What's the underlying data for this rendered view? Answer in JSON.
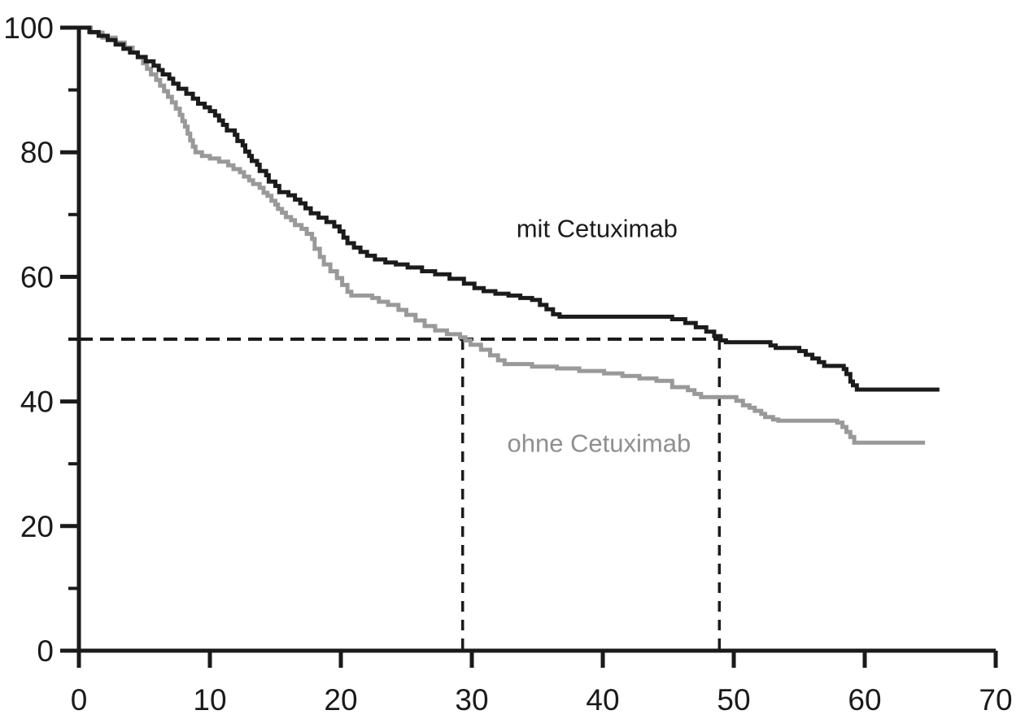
{
  "chart_data": {
    "type": "line",
    "subtype": "kaplan-meier-step",
    "title": "",
    "xlabel": "",
    "ylabel": "",
    "xlim": [
      0,
      70
    ],
    "ylim": [
      0,
      100
    ],
    "xticks": [
      0,
      10,
      20,
      30,
      40,
      50,
      60,
      70
    ],
    "yticks_major": [
      0,
      20,
      40,
      60,
      80,
      100
    ],
    "yticks_minor": [
      10,
      30,
      50,
      70,
      90
    ],
    "grid": false,
    "legend_position": "inline-labels",
    "axis_color": "#1a1a1a",
    "series": [
      {
        "name": "ohne Cetuximab",
        "color": "#999999",
        "stroke_width": 5,
        "points": [
          [
            0,
            100
          ],
          [
            0.9,
            99.2
          ],
          [
            1.8,
            98.4
          ],
          [
            2.8,
            97.6
          ],
          [
            3.5,
            96.8
          ],
          [
            4.1,
            96
          ],
          [
            4.5,
            95.2
          ],
          [
            4.9,
            94.3
          ],
          [
            5.2,
            93.4
          ],
          [
            5.5,
            92.5
          ],
          [
            5.9,
            91.6
          ],
          [
            6.2,
            90.7
          ],
          [
            6.5,
            89.8
          ],
          [
            6.8,
            88.9
          ],
          [
            7.1,
            88
          ],
          [
            7.4,
            87
          ],
          [
            7.7,
            86
          ],
          [
            7.9,
            85
          ],
          [
            8.1,
            84.1
          ],
          [
            8.3,
            83
          ],
          [
            8.5,
            81.9
          ],
          [
            8.7,
            80.9
          ],
          [
            8.9,
            80
          ],
          [
            9.4,
            79.4
          ],
          [
            10,
            79
          ],
          [
            10.7,
            78.5
          ],
          [
            11.4,
            77.9
          ],
          [
            11.8,
            77.3
          ],
          [
            12.3,
            76.8
          ],
          [
            12.6,
            76.1
          ],
          [
            13,
            75.5
          ],
          [
            13.3,
            74.9
          ],
          [
            13.8,
            74.3
          ],
          [
            14.1,
            73.5
          ],
          [
            14.4,
            73
          ],
          [
            14.7,
            72.2
          ],
          [
            15,
            71.6
          ],
          [
            15.2,
            70.9
          ],
          [
            15.5,
            70.3
          ],
          [
            15.8,
            69.6
          ],
          [
            16.2,
            69.1
          ],
          [
            16.5,
            68.3
          ],
          [
            17,
            67.7
          ],
          [
            17.4,
            66.9
          ],
          [
            17.8,
            66.1
          ],
          [
            18,
            64.5
          ],
          [
            18.4,
            63.2
          ],
          [
            18.7,
            62
          ],
          [
            19.2,
            60.9
          ],
          [
            19.7,
            59.8
          ],
          [
            20.1,
            58.7
          ],
          [
            20.5,
            57.6
          ],
          [
            20.8,
            57
          ],
          [
            22.4,
            56.6
          ],
          [
            22.9,
            56
          ],
          [
            23.6,
            55.5
          ],
          [
            24.4,
            54.7
          ],
          [
            25,
            53.9
          ],
          [
            25.7,
            53
          ],
          [
            26.4,
            52.1
          ],
          [
            27.2,
            51.4
          ],
          [
            28.1,
            50.8
          ],
          [
            29.1,
            50.3
          ],
          [
            29.5,
            49.8
          ],
          [
            29.9,
            49.1
          ],
          [
            30.7,
            48.3
          ],
          [
            31.4,
            47.4
          ],
          [
            32,
            46.6
          ],
          [
            32.5,
            46
          ],
          [
            34.6,
            45.6
          ],
          [
            36.5,
            45.3
          ],
          [
            38.2,
            44.9
          ],
          [
            40.1,
            44.5
          ],
          [
            41.5,
            44.1
          ],
          [
            42.8,
            43.7
          ],
          [
            44.1,
            43.3
          ],
          [
            45.3,
            42.3
          ],
          [
            46.5,
            41.8
          ],
          [
            47,
            41.2
          ],
          [
            47.5,
            40.7
          ],
          [
            50.2,
            40.1
          ],
          [
            50.7,
            39.4
          ],
          [
            51.2,
            39
          ],
          [
            51.6,
            38.5
          ],
          [
            52.1,
            38
          ],
          [
            52.4,
            37.5
          ],
          [
            53,
            37.1
          ],
          [
            53.4,
            36.9
          ],
          [
            57.9,
            36.6
          ],
          [
            58.3,
            35.9
          ],
          [
            58.6,
            35.1
          ],
          [
            58.9,
            34.3
          ],
          [
            59.2,
            33.4
          ],
          [
            64.6,
            33.4
          ]
        ]
      },
      {
        "name": "mit Cetuximab",
        "color": "#1b1b1b",
        "stroke_width": 5,
        "points": [
          [
            0,
            100
          ],
          [
            0.8,
            99.3
          ],
          [
            1.5,
            98.7
          ],
          [
            2.2,
            98
          ],
          [
            2.8,
            97.3
          ],
          [
            3.4,
            96.6
          ],
          [
            3.9,
            96
          ],
          [
            4.5,
            95.3
          ],
          [
            5.1,
            94.6
          ],
          [
            5.7,
            93.9
          ],
          [
            6.1,
            93.2
          ],
          [
            6.4,
            92.5
          ],
          [
            6.9,
            91.8
          ],
          [
            7.2,
            91
          ],
          [
            7.6,
            90.2
          ],
          [
            8.2,
            89.4
          ],
          [
            8.7,
            88.6
          ],
          [
            9.1,
            87.8
          ],
          [
            9.6,
            87.2
          ],
          [
            10,
            86.6
          ],
          [
            10.4,
            85.9
          ],
          [
            10.7,
            85.1
          ],
          [
            11,
            84.4
          ],
          [
            11.3,
            83.5
          ],
          [
            11.9,
            82.8
          ],
          [
            12.1,
            81.8
          ],
          [
            12.5,
            81.1
          ],
          [
            12.7,
            80.1
          ],
          [
            13,
            79.4
          ],
          [
            13.2,
            78.6
          ],
          [
            13.6,
            78
          ],
          [
            13.8,
            77
          ],
          [
            14.3,
            76.3
          ],
          [
            14.5,
            75.3
          ],
          [
            15,
            74.6
          ],
          [
            15.3,
            73.6
          ],
          [
            16,
            73.1
          ],
          [
            16.5,
            72.4
          ],
          [
            16.9,
            71.8
          ],
          [
            17.3,
            71
          ],
          [
            17.7,
            70.2
          ],
          [
            18.3,
            69.5
          ],
          [
            18.9,
            68.8
          ],
          [
            19.5,
            68.1
          ],
          [
            19.9,
            67.3
          ],
          [
            20.2,
            66.3
          ],
          [
            20.5,
            65.4
          ],
          [
            21,
            64.7
          ],
          [
            21.5,
            64
          ],
          [
            22,
            63.4
          ],
          [
            22.6,
            62.8
          ],
          [
            23.4,
            62.3
          ],
          [
            24.2,
            62
          ],
          [
            25.1,
            61.5
          ],
          [
            26.2,
            60.9
          ],
          [
            27.2,
            60.4
          ],
          [
            28.3,
            59.7
          ],
          [
            29.4,
            58.9
          ],
          [
            30.2,
            58.2
          ],
          [
            30.9,
            57.7
          ],
          [
            31.8,
            57.3
          ],
          [
            32.8,
            57
          ],
          [
            33.7,
            56.6
          ],
          [
            34.6,
            56.3
          ],
          [
            35.2,
            55.5
          ],
          [
            35.7,
            54.8
          ],
          [
            36.2,
            54
          ],
          [
            36.7,
            53.6
          ],
          [
            45.3,
            53.2
          ],
          [
            46.3,
            52.6
          ],
          [
            47.1,
            51.9
          ],
          [
            47.9,
            51.2
          ],
          [
            48.5,
            50.5
          ],
          [
            49,
            49.8
          ],
          [
            49.4,
            49.5
          ],
          [
            52.8,
            49
          ],
          [
            53.2,
            48.6
          ],
          [
            55,
            48.1
          ],
          [
            55.5,
            47.5
          ],
          [
            56,
            46.9
          ],
          [
            56.5,
            46.3
          ],
          [
            56.9,
            45.7
          ],
          [
            58.4,
            45.2
          ],
          [
            58.6,
            44.4
          ],
          [
            58.9,
            43.2
          ],
          [
            59.1,
            42.6
          ],
          [
            59.4,
            41.9
          ],
          [
            65.7,
            41.9
          ]
        ]
      }
    ],
    "reference_lines": {
      "color": "#1b1b1b",
      "median_level": 50,
      "horizontal": {
        "y": 50,
        "x_from": 0,
        "x_to": 48.9
      },
      "verticals": [
        {
          "x": 29.3,
          "y_from": 0,
          "y_to": 50,
          "meaning": "median ohne Cetuximab"
        },
        {
          "x": 48.9,
          "y_from": 0,
          "y_to": 50,
          "meaning": "median mit Cetuximab"
        }
      ]
    },
    "annotations": [
      {
        "text": "mit Cetuximab",
        "x": 33.4,
        "y": 66.4,
        "color": "#1b1b1b",
        "font_px": 31
      },
      {
        "text": "ohne Cetuximab",
        "x": 32.7,
        "y": 31.9,
        "color": "#8f8f8f",
        "font_px": 31
      }
    ]
  }
}
